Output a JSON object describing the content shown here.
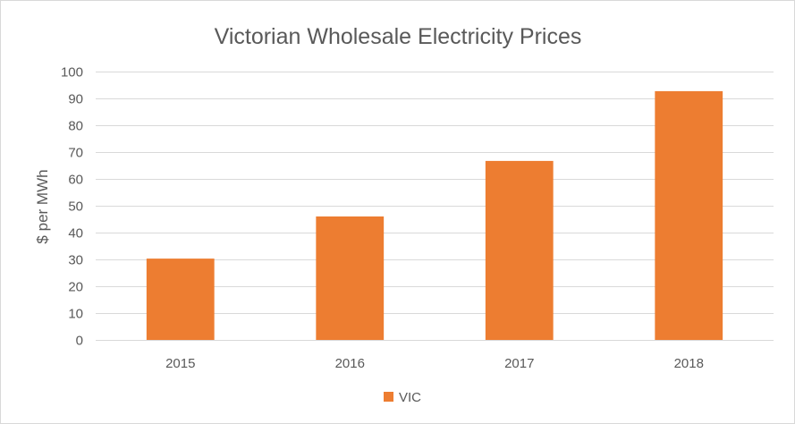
{
  "chart_data": {
    "type": "bar",
    "title": "Victorian Wholesale Electricity Prices",
    "xlabel": "",
    "ylabel": "$ per MWh",
    "categories": [
      "2015",
      "2016",
      "2017",
      "2018"
    ],
    "series": [
      {
        "name": "VIC",
        "color": "#ED7D31",
        "values": [
          30.3,
          46,
          66.7,
          92.7
        ]
      }
    ],
    "ylim": [
      0,
      100
    ],
    "yticks": [
      0,
      10,
      20,
      30,
      40,
      50,
      60,
      70,
      80,
      90,
      100
    ],
    "grid": true,
    "legend_position": "bottom"
  }
}
